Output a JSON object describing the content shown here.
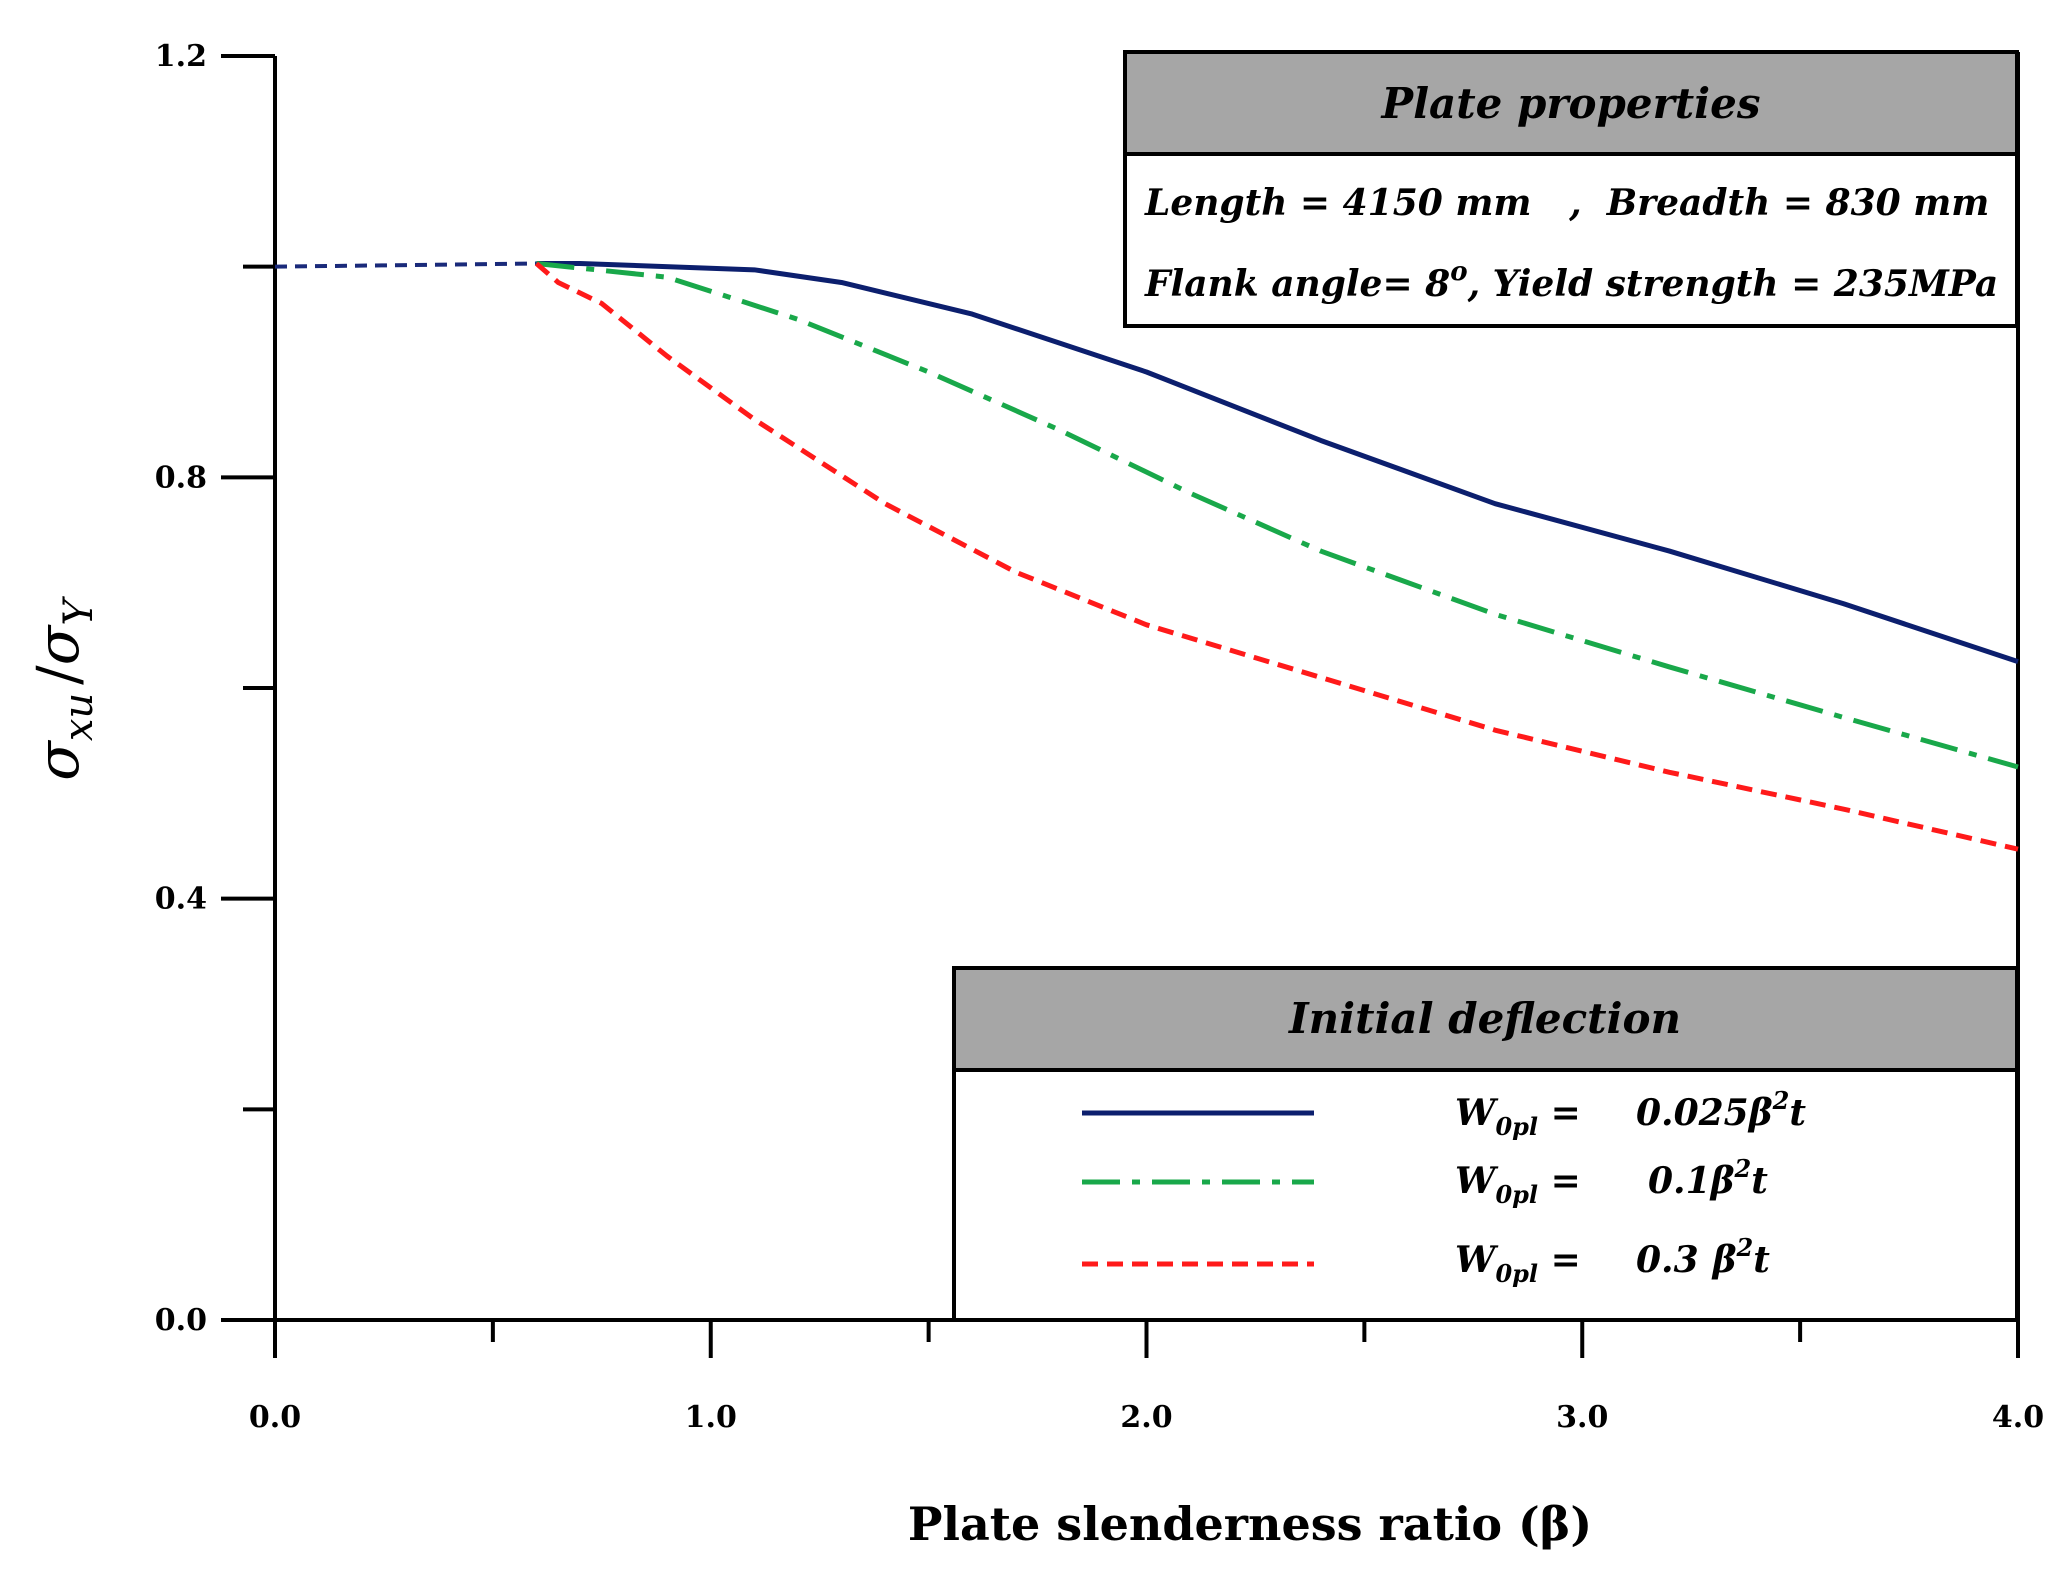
{
  "chart_data": {
    "type": "line",
    "title": "",
    "xlabel": "Plate slenderness ratio (β)",
    "ylabel": "σ_xu / σ_Y",
    "ylabel_parts": {
      "sigma1": "σ",
      "sub1": "xu",
      "slash": "/",
      "sigma2": "σ",
      "sub2": "Y"
    },
    "xlim": [
      0.0,
      4.0
    ],
    "ylim": [
      0.0,
      1.2
    ],
    "x_tick_labels": [
      "0.0",
      "1.0",
      "2.0",
      "3.0",
      "4.0"
    ],
    "x_minor_ticks": [
      0.5,
      1.5,
      2.5,
      3.5
    ],
    "y_tick_labels": [
      "0.0",
      "0.4",
      "0.8",
      "1.2"
    ],
    "y_minor_ticks": [
      0.2,
      0.6,
      1.0
    ],
    "reference_curve": {
      "name": "dashed extension",
      "color": "#1a2a7a",
      "x": [
        0.0,
        0.6
      ],
      "y": [
        1.0,
        1.003
      ]
    },
    "series": [
      {
        "name": "W0pl = 0.025 β²t",
        "color": "#0c1f6e",
        "style": "solid",
        "x": [
          0.6,
          0.7,
          1.1,
          1.3,
          1.6,
          2.0,
          2.4,
          2.8,
          3.2,
          3.6,
          4.0
        ],
        "y": [
          1.003,
          1.003,
          0.997,
          0.985,
          0.955,
          0.9,
          0.835,
          0.775,
          0.73,
          0.68,
          0.625
        ]
      },
      {
        "name": "W0pl = 0.1 β²t",
        "color": "#19a84a",
        "style": "dashdot",
        "x": [
          0.6,
          0.9,
          1.2,
          1.5,
          1.8,
          2.1,
          2.4,
          2.8,
          3.2,
          3.6,
          4.0
        ],
        "y": [
          1.003,
          0.99,
          0.95,
          0.9,
          0.845,
          0.785,
          0.73,
          0.67,
          0.62,
          0.572,
          0.525
        ]
      },
      {
        "name": "W0pl = 0.3 β²t",
        "color": "#ff1a1a",
        "style": "dashed",
        "x": [
          0.6,
          0.65,
          0.75,
          0.9,
          1.1,
          1.4,
          1.7,
          2.0,
          2.4,
          2.8,
          3.2,
          3.6,
          4.0
        ],
        "y": [
          1.003,
          0.985,
          0.965,
          0.915,
          0.855,
          0.775,
          0.71,
          0.66,
          0.61,
          0.56,
          0.52,
          0.485,
          0.447
        ]
      }
    ],
    "properties_box": {
      "header": "Plate properties",
      "line1": "Length = 4150 mm   ,  Breadth = 830 mm",
      "line2_a": "Flank angle= 8",
      "line2_sup": "o",
      "line2_b": ", Yield strength = 235MPa"
    },
    "legend": {
      "header": "Initial deflection",
      "placement": "bottom-right",
      "entries": [
        {
          "w": "W",
          "sub": "0pl",
          "eq": " = ",
          "coef": "0.025",
          "beta": "β",
          "sup": "2",
          "t": "t"
        },
        {
          "w": "W",
          "sub": "0pl",
          "eq": " = ",
          "coef": "0.1",
          "beta": "β",
          "sup": "2",
          "t": "t"
        },
        {
          "w": "W",
          "sub": "0pl",
          "eq": " = ",
          "coef": "0.3",
          "beta": "β",
          "sup": "2",
          "t": "t"
        }
      ]
    }
  }
}
